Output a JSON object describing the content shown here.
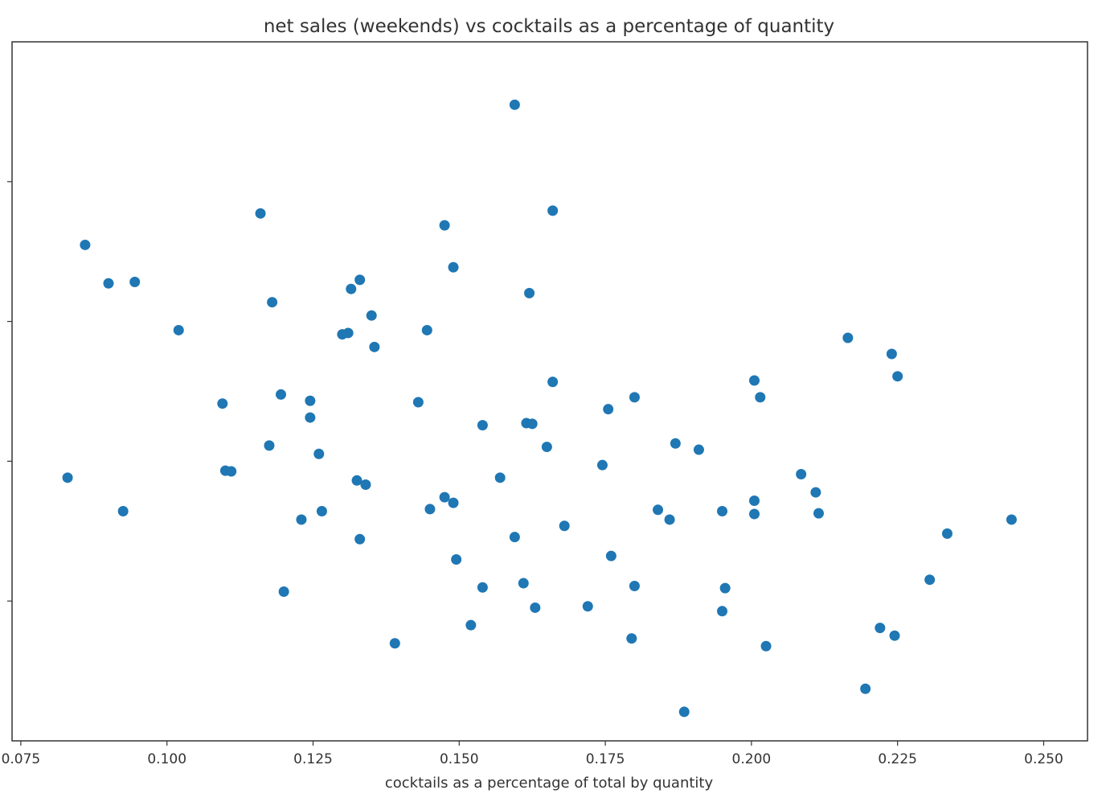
{
  "chart_data": {
    "type": "scatter",
    "title": "net sales (weekends) vs cocktails as a percentage of quantity",
    "xlabel": "cocktails as a percentage of total by quantity",
    "ylabel": "",
    "xlim": [
      0.0735,
      0.2575
    ],
    "ylim": [
      0.0,
      1.0
    ],
    "x_ticks": [
      "0.075",
      "0.100",
      "0.125",
      "0.150",
      "0.175",
      "0.200",
      "0.225",
      "0.250"
    ],
    "x_tick_values": [
      0.075,
      0.1,
      0.125,
      0.15,
      0.175,
      0.2,
      0.225,
      0.25
    ],
    "y_ticks": [
      "",
      "",
      "",
      ""
    ],
    "y_tick_values": [
      0.2,
      0.4,
      0.6,
      0.8
    ],
    "grid": false,
    "marker_color": "#1f77b4",
    "frame_color": "#333333",
    "series": [
      {
        "x": [
          0.1595,
          0.116,
          0.166,
          0.086,
          0.1475,
          0.09,
          0.0945,
          0.149,
          0.133,
          0.1315,
          0.162,
          0.118,
          0.135,
          0.102,
          0.13,
          0.131,
          0.1445,
          0.1355,
          0.2165,
          0.224,
          0.166,
          0.2005,
          0.225,
          0.2015,
          0.1195,
          0.18,
          0.1245,
          0.1095,
          0.143,
          0.1755,
          0.1245,
          0.1615,
          0.1625,
          0.154,
          0.187,
          0.1175,
          0.165,
          0.191,
          0.126,
          0.1745,
          0.11,
          0.111,
          0.2085,
          0.083,
          0.157,
          0.1325,
          0.134,
          0.211,
          0.1475,
          0.2005,
          0.0925,
          0.149,
          0.145,
          0.1265,
          0.184,
          0.195,
          0.2005,
          0.2115,
          0.123,
          0.186,
          0.2445,
          0.168,
          0.1595,
          0.2335,
          0.133,
          0.176,
          0.1495,
          0.2305,
          0.161,
          0.154,
          0.18,
          0.1955,
          0.12,
          0.163,
          0.172,
          0.195,
          0.152,
          0.222,
          0.2245,
          0.1795,
          0.139,
          0.2025,
          0.2195,
          0.1885
        ],
        "y": [
          0.91,
          0.7545,
          0.7585,
          0.7095,
          0.7375,
          0.6545,
          0.6565,
          0.6775,
          0.6595,
          0.6465,
          0.6405,
          0.6275,
          0.6085,
          0.5875,
          0.5815,
          0.5835,
          0.5875,
          0.5635,
          0.5765,
          0.5535,
          0.5135,
          0.5155,
          0.5215,
          0.4915,
          0.4955,
          0.4915,
          0.4865,
          0.4825,
          0.4845,
          0.4745,
          0.4625,
          0.4545,
          0.4535,
          0.4515,
          0.4255,
          0.4225,
          0.4205,
          0.4165,
          0.4105,
          0.3945,
          0.3865,
          0.3855,
          0.3815,
          0.3765,
          0.3765,
          0.3725,
          0.3665,
          0.3555,
          0.3485,
          0.3435,
          0.3285,
          0.3405,
          0.3315,
          0.3285,
          0.3305,
          0.3285,
          0.3245,
          0.3255,
          0.3165,
          0.3165,
          0.3165,
          0.3075,
          0.2915,
          0.2965,
          0.2885,
          0.2645,
          0.2595,
          0.2305,
          0.2255,
          0.2195,
          0.2215,
          0.2185,
          0.2135,
          0.1905,
          0.1925,
          0.1855,
          0.1655,
          0.1615,
          0.1505,
          0.1465,
          0.1395,
          0.1355,
          0.0745,
          0.0415
        ]
      }
    ]
  }
}
